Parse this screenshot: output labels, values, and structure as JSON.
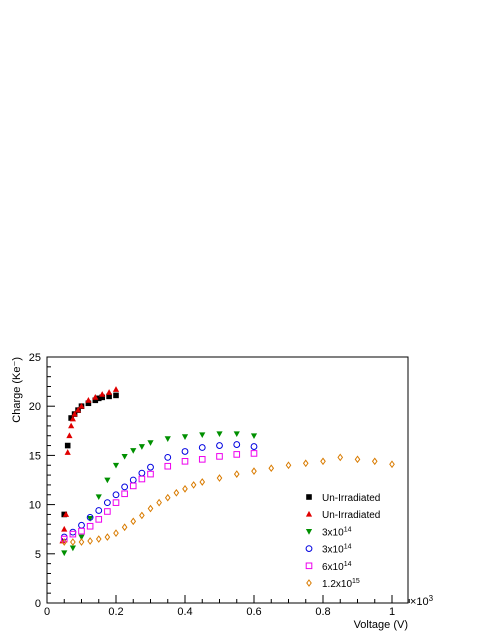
{
  "chart_data": {
    "type": "scatter",
    "title": "",
    "xlabel": "Voltage (V)",
    "ylabel": "Charge (Ke⁻)",
    "x_multiplier_label": "×10",
    "x_multiplier_exp": "3",
    "xlim": [
      0,
      1.05
    ],
    "ylim": [
      0,
      25
    ],
    "x_ticks": [
      "0",
      "0.2",
      "0.4",
      "0.6",
      "0.8",
      "1"
    ],
    "y_ticks": [
      "0",
      "5",
      "10",
      "15",
      "20",
      "25"
    ],
    "grid": false,
    "legend_position": "bottom-right",
    "series": [
      {
        "name": "Un-Irradiated",
        "name_sup": "",
        "marker": "square-filled",
        "color": "#000000",
        "points": [
          [
            0.05,
            9.0
          ],
          [
            0.06,
            16.0
          ],
          [
            0.07,
            18.8
          ],
          [
            0.08,
            19.2
          ],
          [
            0.09,
            19.6
          ],
          [
            0.1,
            20.0
          ],
          [
            0.12,
            20.3
          ],
          [
            0.14,
            20.6
          ],
          [
            0.15,
            20.8
          ],
          [
            0.16,
            20.9
          ],
          [
            0.18,
            21.0
          ],
          [
            0.2,
            21.1
          ]
        ]
      },
      {
        "name": "Un-Irradiated",
        "name_sup": "",
        "marker": "triangle-up-filled",
        "color": "#e00000",
        "points": [
          [
            0.045,
            6.3
          ],
          [
            0.05,
            7.5
          ],
          [
            0.055,
            9.0
          ],
          [
            0.06,
            15.3
          ],
          [
            0.065,
            17.0
          ],
          [
            0.07,
            18.0
          ],
          [
            0.075,
            18.7
          ],
          [
            0.08,
            19.2
          ],
          [
            0.09,
            19.6
          ],
          [
            0.1,
            20.0
          ],
          [
            0.12,
            20.6
          ],
          [
            0.14,
            20.9
          ],
          [
            0.16,
            21.2
          ],
          [
            0.18,
            21.4
          ],
          [
            0.2,
            21.7
          ]
        ]
      },
      {
        "name": "3x10",
        "name_sup": "14",
        "marker": "triangle-down-filled",
        "color": "#009000",
        "points": [
          [
            0.05,
            5.1
          ],
          [
            0.075,
            5.6
          ],
          [
            0.1,
            6.7
          ],
          [
            0.125,
            8.6
          ],
          [
            0.15,
            10.8
          ],
          [
            0.175,
            12.5
          ],
          [
            0.2,
            14.0
          ],
          [
            0.225,
            14.9
          ],
          [
            0.25,
            15.5
          ],
          [
            0.275,
            15.9
          ],
          [
            0.3,
            16.3
          ],
          [
            0.35,
            16.7
          ],
          [
            0.4,
            16.9
          ],
          [
            0.45,
            17.1
          ],
          [
            0.5,
            17.2
          ],
          [
            0.55,
            17.2
          ],
          [
            0.6,
            17.0
          ]
        ]
      },
      {
        "name": "3x10",
        "name_sup": "14",
        "marker": "circle-open",
        "color": "#0000e0",
        "points": [
          [
            0.05,
            6.7
          ],
          [
            0.075,
            7.2
          ],
          [
            0.1,
            7.9
          ],
          [
            0.125,
            8.7
          ],
          [
            0.15,
            9.4
          ],
          [
            0.175,
            10.2
          ],
          [
            0.2,
            11.0
          ],
          [
            0.225,
            11.8
          ],
          [
            0.25,
            12.5
          ],
          [
            0.275,
            13.2
          ],
          [
            0.3,
            13.8
          ],
          [
            0.35,
            14.8
          ],
          [
            0.4,
            15.4
          ],
          [
            0.45,
            15.8
          ],
          [
            0.5,
            16.0
          ],
          [
            0.55,
            16.1
          ],
          [
            0.6,
            15.9
          ]
        ]
      },
      {
        "name": "6x10",
        "name_sup": "14",
        "marker": "square-open",
        "color": "#ee00ee",
        "points": [
          [
            0.05,
            6.5
          ],
          [
            0.075,
            7.0
          ],
          [
            0.1,
            7.3
          ],
          [
            0.125,
            7.8
          ],
          [
            0.15,
            8.5
          ],
          [
            0.175,
            9.3
          ],
          [
            0.2,
            10.2
          ],
          [
            0.225,
            11.1
          ],
          [
            0.25,
            11.9
          ],
          [
            0.275,
            12.6
          ],
          [
            0.3,
            13.1
          ],
          [
            0.35,
            13.9
          ],
          [
            0.4,
            14.4
          ],
          [
            0.45,
            14.6
          ],
          [
            0.5,
            14.9
          ],
          [
            0.55,
            15.1
          ],
          [
            0.6,
            15.2
          ]
        ]
      },
      {
        "name": "1.2x10",
        "name_sup": "15",
        "marker": "diamond-open",
        "color": "#d97b00",
        "points": [
          [
            0.05,
            6.2
          ],
          [
            0.075,
            6.2
          ],
          [
            0.1,
            6.2
          ],
          [
            0.125,
            6.3
          ],
          [
            0.15,
            6.5
          ],
          [
            0.175,
            6.7
          ],
          [
            0.2,
            7.1
          ],
          [
            0.225,
            7.7
          ],
          [
            0.25,
            8.3
          ],
          [
            0.275,
            8.9
          ],
          [
            0.3,
            9.6
          ],
          [
            0.325,
            10.2
          ],
          [
            0.35,
            10.7
          ],
          [
            0.375,
            11.2
          ],
          [
            0.4,
            11.6
          ],
          [
            0.425,
            12.0
          ],
          [
            0.45,
            12.3
          ],
          [
            0.5,
            12.7
          ],
          [
            0.55,
            13.1
          ],
          [
            0.6,
            13.4
          ],
          [
            0.65,
            13.7
          ],
          [
            0.7,
            14.0
          ],
          [
            0.75,
            14.2
          ],
          [
            0.8,
            14.4
          ],
          [
            0.85,
            14.8
          ],
          [
            0.9,
            14.6
          ],
          [
            0.95,
            14.4
          ],
          [
            1.0,
            14.1
          ]
        ]
      }
    ]
  }
}
